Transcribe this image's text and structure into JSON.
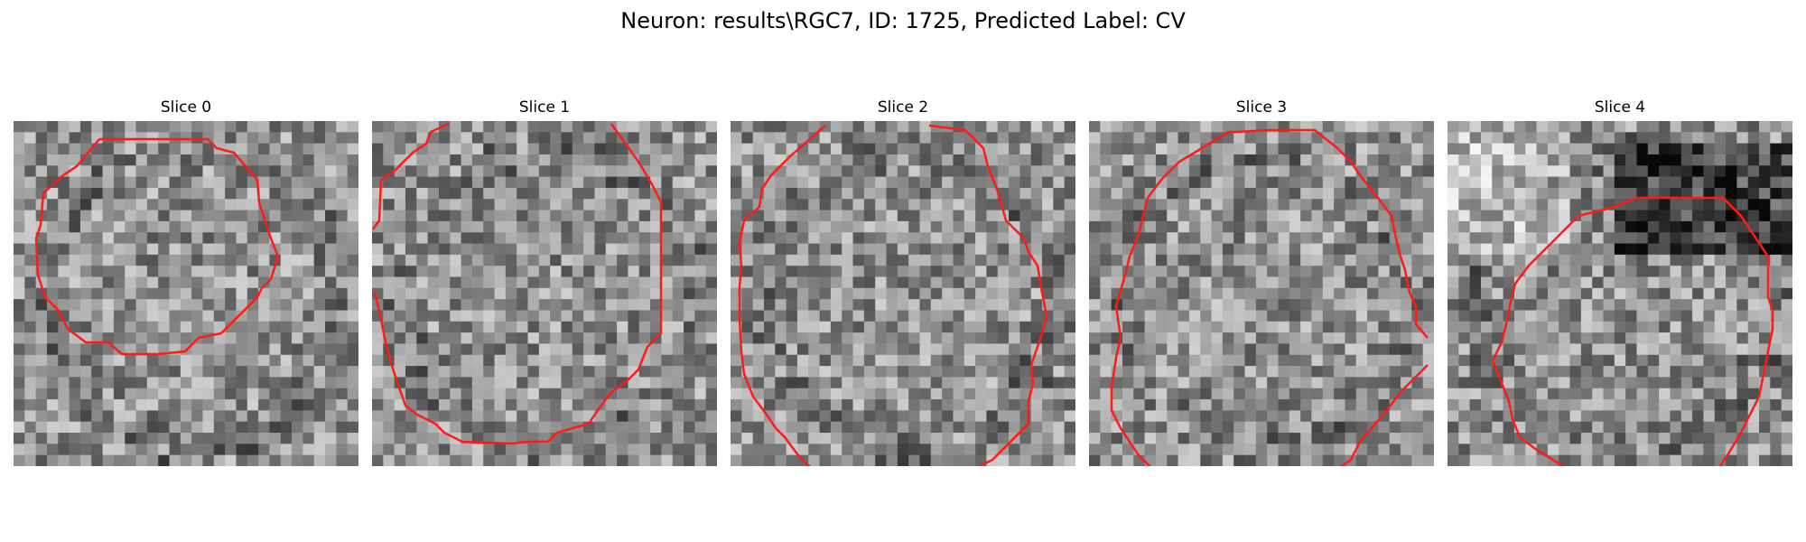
{
  "figure": {
    "title": "Neuron: results\\RGC7, ID: 1725, Predicted Label: CV"
  },
  "panels": [
    {
      "title": "Slice 0",
      "seed": 11,
      "dark_frac": 0.5,
      "contour_color": "#ff1a1a"
    },
    {
      "title": "Slice 1",
      "seed": 23,
      "dark_frac": 0.5,
      "contour_color": "#ff1a1a"
    },
    {
      "title": "Slice 2",
      "seed": 37,
      "dark_frac": 0.5,
      "contour_color": "#ff1a1a"
    },
    {
      "title": "Slice 3",
      "seed": 51,
      "dark_frac": 0.5,
      "contour_color": "#ff1a1a"
    },
    {
      "title": "Slice 4",
      "seed": 67,
      "dark_frac": 0.5,
      "contour_color": "#ff1a1a"
    }
  ]
}
